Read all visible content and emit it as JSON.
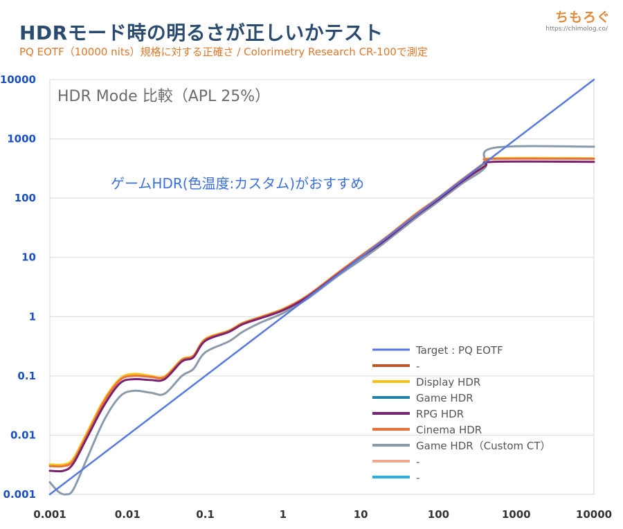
{
  "header": {
    "title": "HDRモード時の明るさが正しいかテスト",
    "subtitle": "PQ EOTF（10000 nits）規格に対する正確さ / Colorimetry Research CR-100で測定",
    "brand": "ちもろぐ",
    "brand_url": "https://chimolog.co/"
  },
  "chart_data": {
    "type": "line",
    "title": "HDR Mode 比較（APL 25%）",
    "annotation": "ゲームHDR(色温度:カスタム)がおすすめ",
    "xscale": "log",
    "yscale": "log",
    "xlim": [
      0.001,
      10000
    ],
    "ylim": [
      0.001,
      10000
    ],
    "x_ticks": [
      "0.001",
      "0.01",
      "0.1",
      "1",
      "10",
      "100",
      "1000",
      "10000"
    ],
    "y_ticks": [
      "0.001",
      "0.01",
      "0.1",
      "1",
      "10",
      "100",
      "1000",
      "10000"
    ],
    "grid": "horizontal",
    "legend_position": "bottom-right",
    "series": [
      {
        "name": "Target : PQ EOTF",
        "color": "#5577e0",
        "width": 2.5,
        "points": [
          [
            0.001,
            0.001
          ],
          [
            10000,
            10000
          ]
        ]
      },
      {
        "name": "-",
        "color": "#b8582a",
        "width": 3,
        "points": []
      },
      {
        "name": "Display HDR",
        "color": "#f5c21a",
        "width": 3,
        "points": [
          [
            0.001,
            0.0032
          ],
          [
            0.0015,
            0.0032
          ],
          [
            0.002,
            0.004
          ],
          [
            0.003,
            0.011
          ],
          [
            0.005,
            0.04
          ],
          [
            0.008,
            0.09
          ],
          [
            0.012,
            0.108
          ],
          [
            0.02,
            0.1
          ],
          [
            0.03,
            0.098
          ],
          [
            0.05,
            0.19
          ],
          [
            0.07,
            0.22
          ],
          [
            0.1,
            0.42
          ],
          [
            0.2,
            0.58
          ],
          [
            0.3,
            0.78
          ],
          [
            0.5,
            0.98
          ],
          [
            1,
            1.35
          ],
          [
            2,
            2.2
          ],
          [
            5,
            5.4
          ],
          [
            10,
            10.5
          ],
          [
            20,
            20
          ],
          [
            50,
            52
          ],
          [
            100,
            100
          ],
          [
            200,
            200
          ],
          [
            400,
            380
          ],
          [
            500,
            470
          ],
          [
            10000,
            470
          ]
        ]
      },
      {
        "name": "Game HDR",
        "color": "#1f80a8",
        "width": 3,
        "points": []
      },
      {
        "name": "RPG HDR",
        "color": "#7a2070",
        "width": 3,
        "points": [
          [
            0.001,
            0.0025
          ],
          [
            0.0015,
            0.0025
          ],
          [
            0.002,
            0.0033
          ],
          [
            0.003,
            0.009
          ],
          [
            0.005,
            0.032
          ],
          [
            0.008,
            0.075
          ],
          [
            0.012,
            0.088
          ],
          [
            0.02,
            0.085
          ],
          [
            0.03,
            0.088
          ],
          [
            0.05,
            0.175
          ],
          [
            0.07,
            0.205
          ],
          [
            0.1,
            0.39
          ],
          [
            0.2,
            0.55
          ],
          [
            0.3,
            0.74
          ],
          [
            0.5,
            0.93
          ],
          [
            1,
            1.28
          ],
          [
            2,
            2.1
          ],
          [
            5,
            5.1
          ],
          [
            10,
            10
          ],
          [
            20,
            19
          ],
          [
            50,
            49
          ],
          [
            100,
            95
          ],
          [
            200,
            190
          ],
          [
            400,
            350
          ],
          [
            500,
            410
          ],
          [
            10000,
            410
          ]
        ]
      },
      {
        "name": "Cinema HDR",
        "color": "#e8733a",
        "width": 3,
        "points": [
          [
            0.001,
            0.003
          ],
          [
            0.0015,
            0.003
          ],
          [
            0.002,
            0.0037
          ],
          [
            0.003,
            0.01
          ],
          [
            0.005,
            0.037
          ],
          [
            0.008,
            0.085
          ],
          [
            0.012,
            0.1
          ],
          [
            0.02,
            0.096
          ],
          [
            0.03,
            0.095
          ],
          [
            0.05,
            0.185
          ],
          [
            0.07,
            0.215
          ],
          [
            0.1,
            0.41
          ],
          [
            0.2,
            0.57
          ],
          [
            0.3,
            0.77
          ],
          [
            0.5,
            0.97
          ],
          [
            1,
            1.33
          ],
          [
            2,
            2.2
          ],
          [
            5,
            5.4
          ],
          [
            10,
            10.6
          ],
          [
            20,
            20.5
          ],
          [
            50,
            53
          ],
          [
            100,
            102
          ],
          [
            200,
            205
          ],
          [
            400,
            400
          ],
          [
            500,
            460
          ],
          [
            10000,
            460
          ]
        ]
      },
      {
        "name": "Game HDR（Custom CT）",
        "color": "#8a9aaa",
        "width": 3,
        "points": [
          [
            0.001,
            0.0016
          ],
          [
            0.0013,
            0.0011
          ],
          [
            0.0016,
            0.001
          ],
          [
            0.002,
            0.0012
          ],
          [
            0.003,
            0.004
          ],
          [
            0.005,
            0.018
          ],
          [
            0.008,
            0.045
          ],
          [
            0.012,
            0.056
          ],
          [
            0.02,
            0.052
          ],
          [
            0.03,
            0.05
          ],
          [
            0.05,
            0.1
          ],
          [
            0.07,
            0.13
          ],
          [
            0.1,
            0.25
          ],
          [
            0.2,
            0.38
          ],
          [
            0.3,
            0.55
          ],
          [
            0.5,
            0.78
          ],
          [
            1,
            1.15
          ],
          [
            2,
            1.95
          ],
          [
            5,
            4.8
          ],
          [
            10,
            9
          ],
          [
            20,
            17.5
          ],
          [
            50,
            45
          ],
          [
            100,
            88
          ],
          [
            200,
            175
          ],
          [
            400,
            330
          ],
          [
            500,
            700
          ],
          [
            10000,
            740
          ]
        ]
      },
      {
        "name": "-",
        "color": "#f0a890",
        "width": 3,
        "points": []
      },
      {
        "name": "-",
        "color": "#2ab0e0",
        "width": 3,
        "points": []
      }
    ]
  }
}
